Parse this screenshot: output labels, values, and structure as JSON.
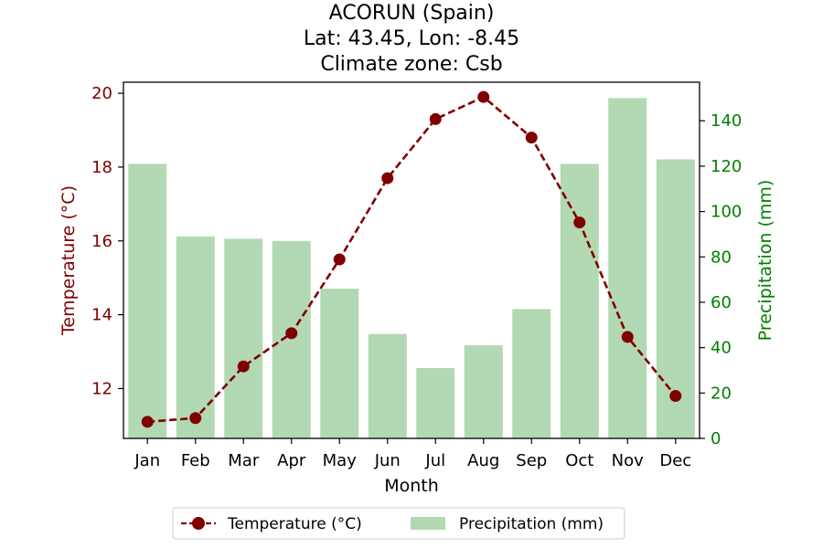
{
  "chart_data": {
    "type": "bar",
    "title": [
      "ACORUN (Spain)",
      "Lat: 43.45, Lon: -8.45",
      "Climate zone: Csb"
    ],
    "categories": [
      "Jan",
      "Feb",
      "Mar",
      "Apr",
      "May",
      "Jun",
      "Jul",
      "Aug",
      "Sep",
      "Oct",
      "Nov",
      "Dec"
    ],
    "xlabel": "Month",
    "series": [
      {
        "name": "Temperature (°C)",
        "type": "line",
        "axis": "left",
        "color": "#800000",
        "values": [
          11.1,
          11.2,
          12.6,
          13.5,
          15.5,
          17.7,
          19.3,
          19.9,
          18.8,
          16.5,
          13.4,
          11.8
        ]
      },
      {
        "name": "Precipitation (mm)",
        "type": "bar",
        "axis": "right",
        "color": "#b2d9b2",
        "values": [
          121,
          89,
          88,
          87,
          66,
          46,
          31,
          41,
          57,
          121,
          150,
          123
        ]
      }
    ],
    "y_left": {
      "label": "Temperature (°C)",
      "ylim": [
        10.65,
        20.3
      ],
      "ticks": [
        12,
        14,
        16,
        18,
        20
      ],
      "color": "#800000"
    },
    "y_right": {
      "label": "Precipitation (mm)",
      "ylim": [
        0,
        157
      ],
      "ticks": [
        0,
        20,
        40,
        60,
        80,
        100,
        120,
        140
      ],
      "color": "#008000"
    },
    "grid": false,
    "legend_position": "bottom-center"
  }
}
